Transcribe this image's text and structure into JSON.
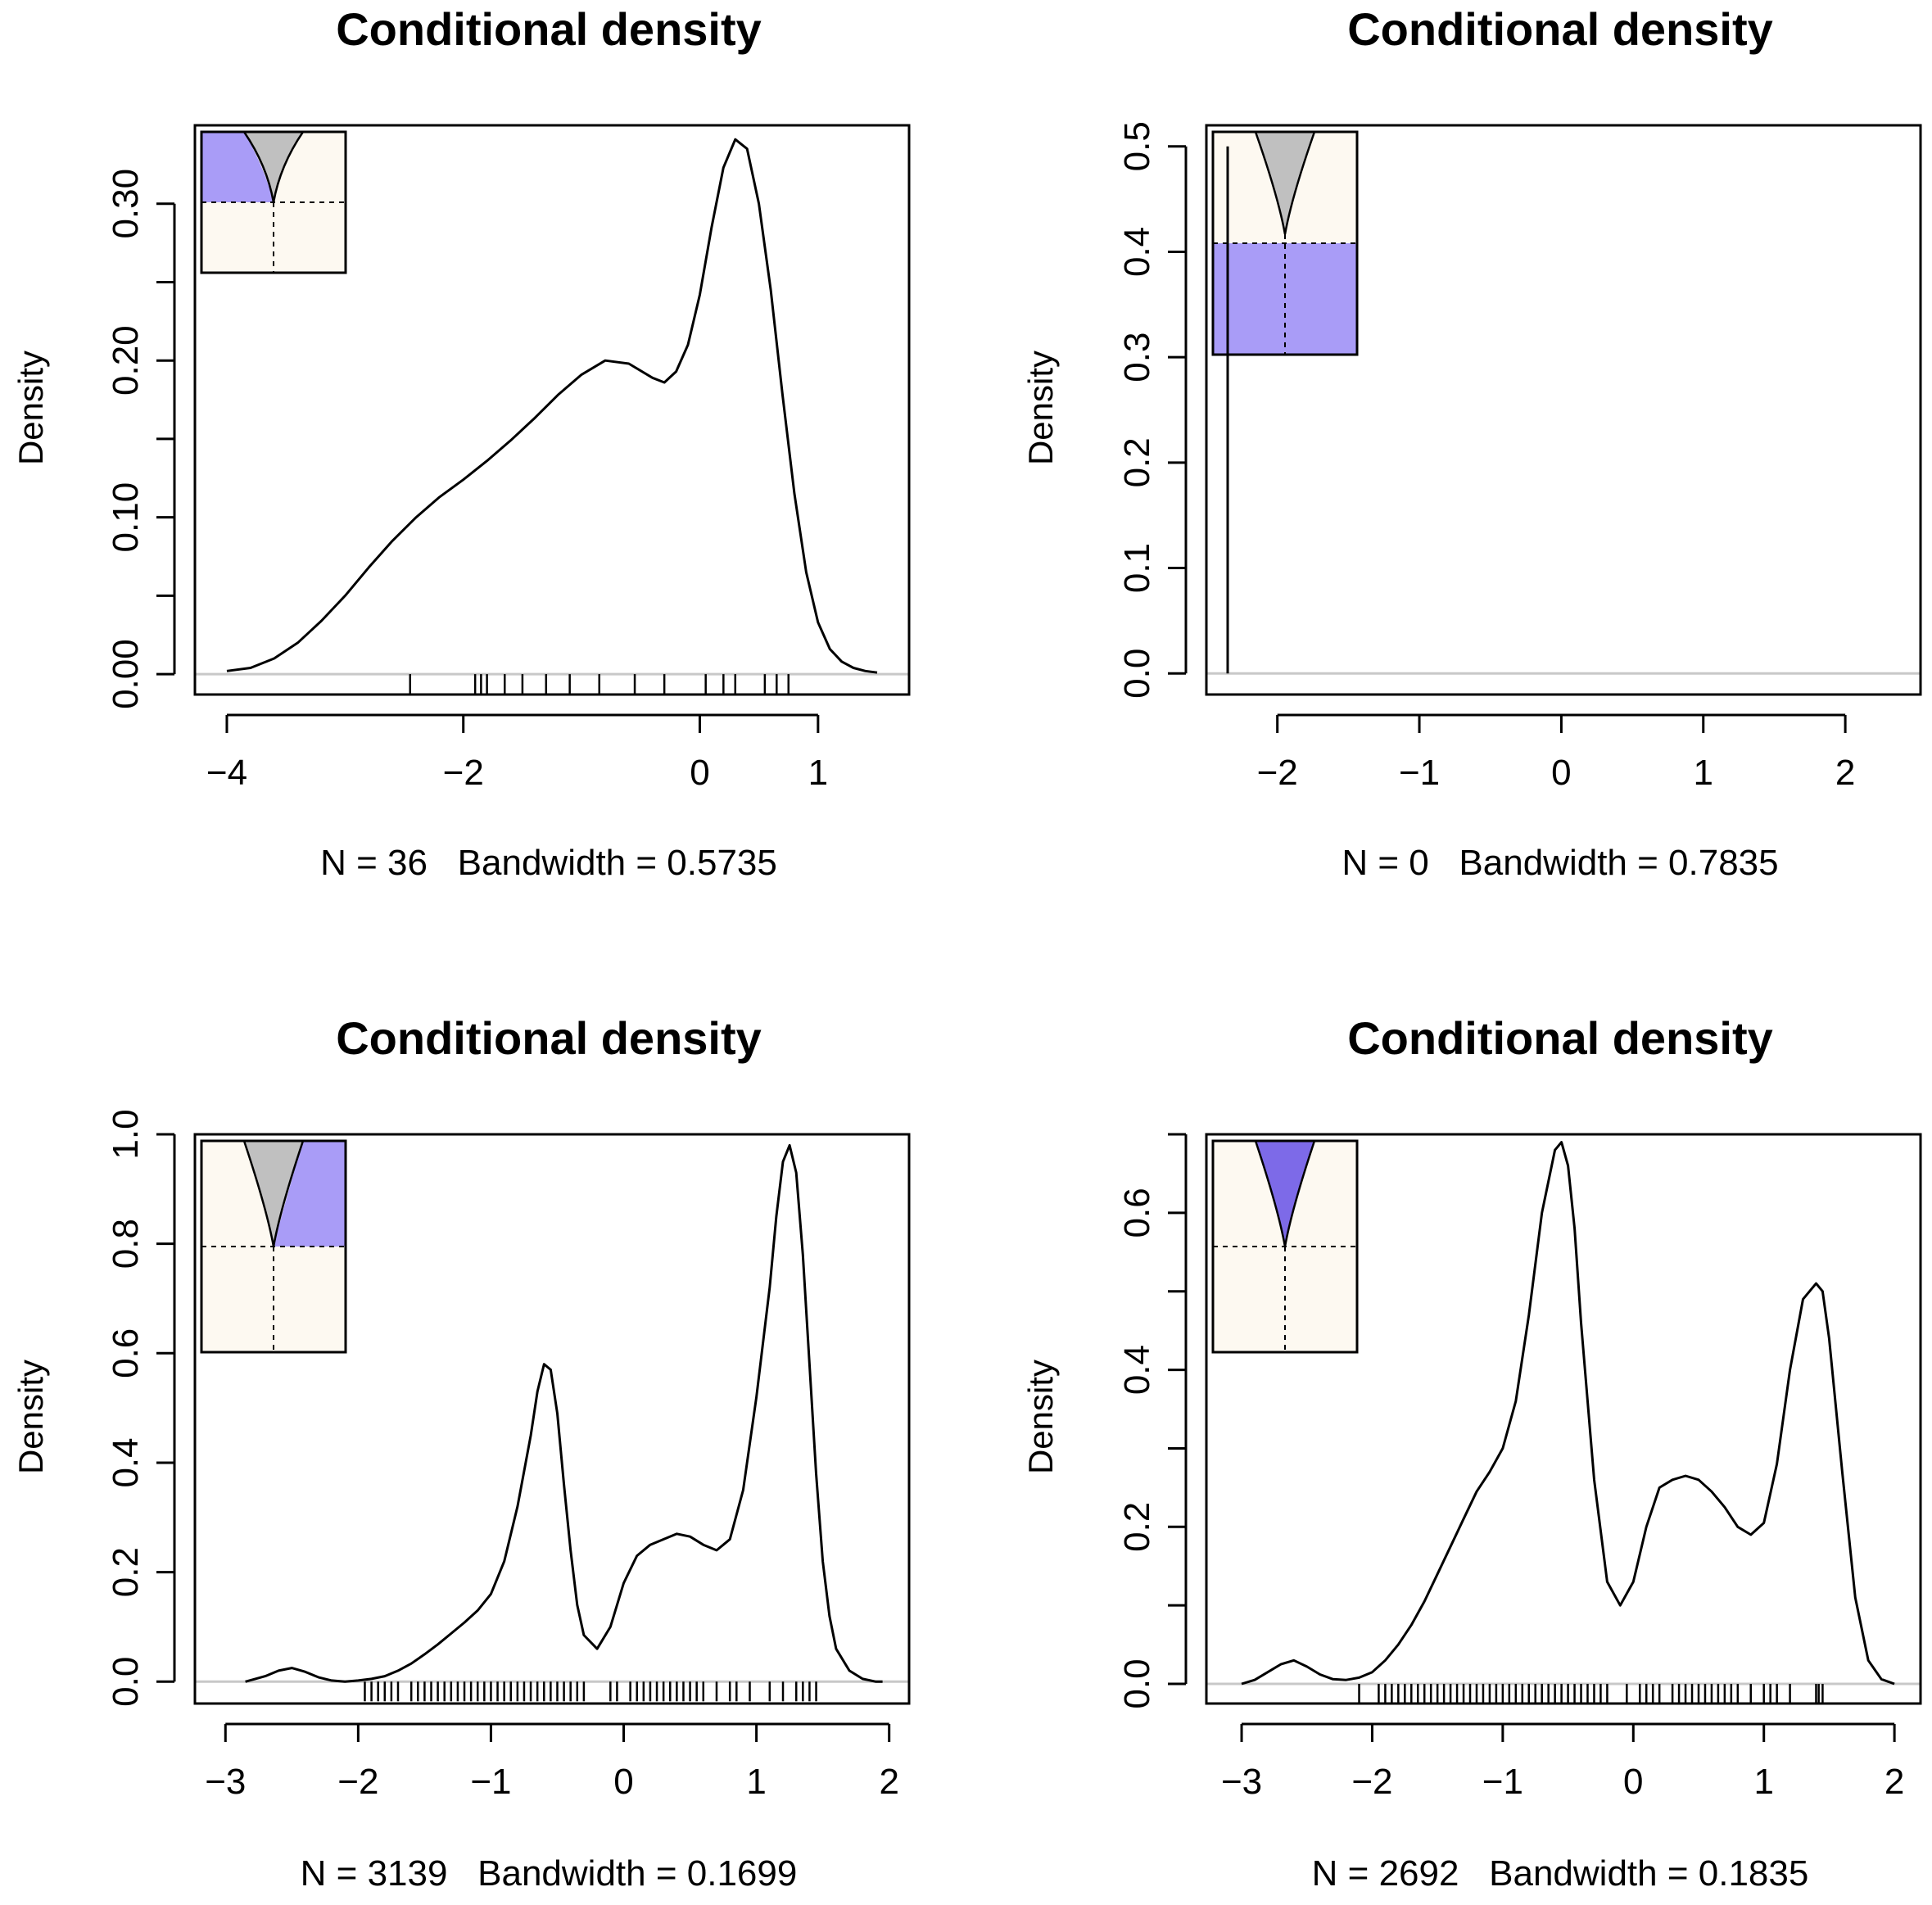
{
  "figure": {
    "title": "Conditional density",
    "ylabel": "Density"
  },
  "colors": {
    "inset_fill": "#a99cf7",
    "inset_peak": "#c0c0c0",
    "inset_bg": "#fdf9f1",
    "baseline": "#c8c8c8",
    "curve": "#000000"
  },
  "chart_data": [
    {
      "type": "line",
      "title": "Conditional density",
      "ylabel": "Density",
      "xlabel": "N = 36   Bandwidth = 0.5735",
      "xlim": [
        -4.27,
        1.77
      ],
      "ylim": [
        -0.013,
        0.35
      ],
      "xticks": [
        -4,
        -2,
        0,
        1
      ],
      "xtick_labels": [
        "−4",
        "−2",
        "0",
        "1"
      ],
      "yticks": [
        0.0,
        0.05,
        0.1,
        0.15,
        0.2,
        0.25,
        0.3
      ],
      "ytick_labels": [
        "0.00",
        "",
        "0.10",
        "",
        "0.20",
        "",
        "0.30"
      ],
      "curve": {
        "x": [
          -4.0,
          -3.8,
          -3.6,
          -3.4,
          -3.2,
          -3.0,
          -2.8,
          -2.6,
          -2.4,
          -2.2,
          -2.0,
          -1.8,
          -1.6,
          -1.4,
          -1.2,
          -1.0,
          -0.8,
          -0.6,
          -0.4,
          -0.3,
          -0.2,
          -0.1,
          0.0,
          0.1,
          0.2,
          0.3,
          0.4,
          0.5,
          0.6,
          0.7,
          0.8,
          0.9,
          1.0,
          1.1,
          1.2,
          1.3,
          1.4,
          1.5
        ],
        "y": [
          0.002,
          0.004,
          0.01,
          0.02,
          0.034,
          0.05,
          0.068,
          0.085,
          0.1,
          0.113,
          0.124,
          0.136,
          0.149,
          0.163,
          0.178,
          0.191,
          0.2,
          0.198,
          0.189,
          0.186,
          0.193,
          0.21,
          0.242,
          0.285,
          0.323,
          0.341,
          0.335,
          0.3,
          0.245,
          0.178,
          0.115,
          0.065,
          0.033,
          0.016,
          0.008,
          0.004,
          0.002,
          0.001
        ]
      },
      "rug": [
        -2.45,
        -1.9,
        -1.85,
        -1.8,
        -1.65,
        -1.5,
        -1.3,
        -1.1,
        -0.85,
        -0.55,
        -0.3,
        0.05,
        0.2,
        0.3,
        0.55,
        0.65,
        0.75
      ],
      "inset": {
        "shaded": "upper-left",
        "peak": "gray"
      }
    },
    {
      "type": "line",
      "title": "Conditional density",
      "ylabel": "Density",
      "xlabel": "N = 0   Bandwidth = 0.7835",
      "xlim": [
        -2.5,
        2.53
      ],
      "ylim": [
        -0.02,
        0.52
      ],
      "xticks": [
        -2,
        -1,
        0,
        1,
        2
      ],
      "xtick_labels": [
        "−2",
        "−1",
        "0",
        "1",
        "2"
      ],
      "yticks": [
        0.0,
        0.1,
        0.2,
        0.3,
        0.4,
        0.5
      ],
      "ytick_labels": [
        "0.0",
        "0.1",
        "0.2",
        "0.3",
        "0.4",
        "0.5"
      ],
      "spike": {
        "x": -2.35,
        "y": 0.5
      },
      "rug": [],
      "inset": {
        "shaded": "lower-full",
        "peak": "gray"
      }
    },
    {
      "type": "line",
      "title": "Conditional density",
      "ylabel": "Density",
      "xlabel": "N = 3139   Bandwidth = 0.1699",
      "xlim": [
        -3.23,
        2.15
      ],
      "ylim": [
        -0.04,
        1.0
      ],
      "xticks": [
        -3,
        -2,
        -1,
        0,
        1,
        2
      ],
      "xtick_labels": [
        "−3",
        "−2",
        "−1",
        "0",
        "1",
        "2"
      ],
      "yticks": [
        0.0,
        0.2,
        0.4,
        0.6,
        0.8,
        1.0
      ],
      "ytick_labels": [
        "0.0",
        "0.2",
        "0.4",
        "0.6",
        "0.8",
        "1.0"
      ],
      "curve": {
        "x": [
          -2.85,
          -2.7,
          -2.6,
          -2.5,
          -2.4,
          -2.3,
          -2.2,
          -2.1,
          -2.0,
          -1.9,
          -1.8,
          -1.7,
          -1.6,
          -1.5,
          -1.4,
          -1.3,
          -1.2,
          -1.1,
          -1.0,
          -0.9,
          -0.8,
          -0.7,
          -0.65,
          -0.6,
          -0.55,
          -0.5,
          -0.45,
          -0.4,
          -0.35,
          -0.3,
          -0.2,
          -0.1,
          0.0,
          0.1,
          0.2,
          0.3,
          0.4,
          0.5,
          0.6,
          0.7,
          0.8,
          0.9,
          1.0,
          1.1,
          1.15,
          1.2,
          1.25,
          1.3,
          1.35,
          1.4,
          1.45,
          1.5,
          1.55,
          1.6,
          1.7,
          1.8,
          1.9,
          1.95
        ],
        "y": [
          0.0,
          0.01,
          0.02,
          0.025,
          0.018,
          0.008,
          0.002,
          0.0,
          0.002,
          0.005,
          0.01,
          0.02,
          0.033,
          0.05,
          0.068,
          0.088,
          0.108,
          0.13,
          0.16,
          0.22,
          0.32,
          0.45,
          0.53,
          0.58,
          0.57,
          0.49,
          0.36,
          0.24,
          0.14,
          0.085,
          0.06,
          0.1,
          0.18,
          0.23,
          0.25,
          0.26,
          0.27,
          0.265,
          0.25,
          0.24,
          0.26,
          0.35,
          0.52,
          0.72,
          0.85,
          0.95,
          0.98,
          0.93,
          0.78,
          0.58,
          0.38,
          0.22,
          0.12,
          0.06,
          0.02,
          0.005,
          0.0,
          0.0
        ]
      },
      "rug": [
        -1.95,
        -1.9,
        -1.85,
        -1.8,
        -1.75,
        -1.7,
        -1.6,
        -1.55,
        -1.5,
        -1.45,
        -1.4,
        -1.35,
        -1.3,
        -1.25,
        -1.2,
        -1.15,
        -1.1,
        -1.05,
        -1.0,
        -0.95,
        -0.9,
        -0.85,
        -0.8,
        -0.75,
        -0.7,
        -0.65,
        -0.6,
        -0.55,
        -0.5,
        -0.45,
        -0.4,
        -0.35,
        -0.3,
        -0.1,
        -0.05,
        0.05,
        0.1,
        0.15,
        0.2,
        0.25,
        0.3,
        0.35,
        0.4,
        0.45,
        0.5,
        0.55,
        0.6,
        0.7,
        0.8,
        0.85,
        0.95,
        1.1,
        1.2,
        1.3,
        1.35,
        1.4,
        1.45
      ],
      "inset": {
        "shaded": "upper-right",
        "peak": "gray"
      }
    },
    {
      "type": "line",
      "title": "Conditional density",
      "ylabel": "Density",
      "xlabel": "N = 2692   Bandwidth = 0.1835",
      "xlim": [
        -3.27,
        2.2
      ],
      "ylim": [
        -0.025,
        0.7
      ],
      "xticks": [
        -3,
        -2,
        -1,
        0,
        1,
        2
      ],
      "xtick_labels": [
        "−3",
        "−2",
        "−1",
        "0",
        "1",
        "2"
      ],
      "yticks": [
        0.0,
        0.1,
        0.2,
        0.3,
        0.4,
        0.5,
        0.6,
        0.7
      ],
      "ytick_labels": [
        "0.0",
        "",
        "0.2",
        "",
        "0.4",
        "",
        "0.6",
        ""
      ],
      "curve": {
        "x": [
          -3.0,
          -2.9,
          -2.8,
          -2.7,
          -2.6,
          -2.5,
          -2.4,
          -2.3,
          -2.2,
          -2.1,
          -2.0,
          -1.9,
          -1.8,
          -1.7,
          -1.6,
          -1.5,
          -1.4,
          -1.3,
          -1.2,
          -1.1,
          -1.0,
          -0.9,
          -0.8,
          -0.7,
          -0.6,
          -0.55,
          -0.5,
          -0.45,
          -0.4,
          -0.3,
          -0.2,
          -0.1,
          0.0,
          0.1,
          0.2,
          0.3,
          0.4,
          0.5,
          0.6,
          0.7,
          0.8,
          0.9,
          1.0,
          1.1,
          1.2,
          1.3,
          1.4,
          1.45,
          1.5,
          1.6,
          1.7,
          1.8,
          1.9,
          2.0
        ],
        "y": [
          0.0,
          0.005,
          0.015,
          0.025,
          0.03,
          0.022,
          0.012,
          0.006,
          0.005,
          0.008,
          0.015,
          0.03,
          0.05,
          0.075,
          0.105,
          0.14,
          0.175,
          0.21,
          0.245,
          0.27,
          0.3,
          0.36,
          0.47,
          0.6,
          0.68,
          0.69,
          0.66,
          0.58,
          0.46,
          0.26,
          0.13,
          0.1,
          0.13,
          0.2,
          0.25,
          0.26,
          0.265,
          0.26,
          0.245,
          0.225,
          0.2,
          0.19,
          0.205,
          0.28,
          0.4,
          0.49,
          0.51,
          0.5,
          0.44,
          0.27,
          0.11,
          0.03,
          0.006,
          0.0
        ]
      },
      "rug": [
        -2.1,
        -1.95,
        -1.9,
        -1.85,
        -1.8,
        -1.75,
        -1.7,
        -1.65,
        -1.6,
        -1.55,
        -1.5,
        -1.45,
        -1.4,
        -1.35,
        -1.3,
        -1.25,
        -1.2,
        -1.15,
        -1.1,
        -1.05,
        -1.0,
        -0.95,
        -0.9,
        -0.85,
        -0.8,
        -0.75,
        -0.7,
        -0.65,
        -0.6,
        -0.55,
        -0.5,
        -0.45,
        -0.4,
        -0.35,
        -0.3,
        -0.25,
        -0.2,
        -0.05,
        0.05,
        0.1,
        0.15,
        0.2,
        0.3,
        0.35,
        0.4,
        0.45,
        0.5,
        0.55,
        0.6,
        0.65,
        0.7,
        0.75,
        0.8,
        0.9,
        1.0,
        1.05,
        1.1,
        1.2,
        1.4,
        1.42,
        1.45
      ],
      "inset": {
        "shaded": "upper-middle",
        "peak": "violet"
      }
    }
  ]
}
